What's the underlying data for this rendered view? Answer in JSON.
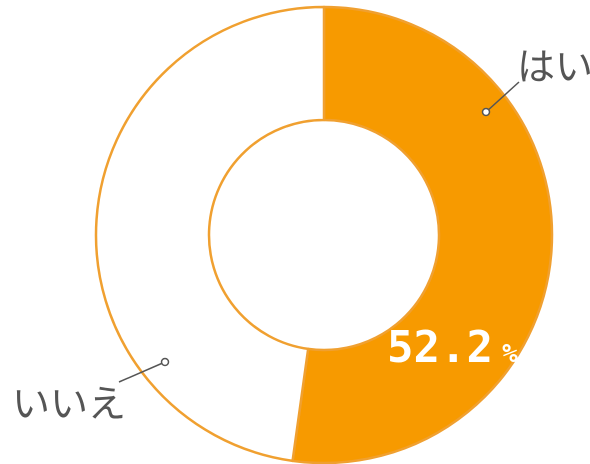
{
  "chart_data": {
    "type": "pie",
    "variant": "donut",
    "categories": [
      "はい",
      "いいえ"
    ],
    "values": [
      52.2,
      47.8
    ],
    "colors": [
      "#f79a00",
      "#ffffff"
    ],
    "outline_color": "#f0a030",
    "data_labels": [
      {
        "value": "52.2",
        "unit": "%"
      }
    ],
    "title": "",
    "legend": "none"
  }
}
